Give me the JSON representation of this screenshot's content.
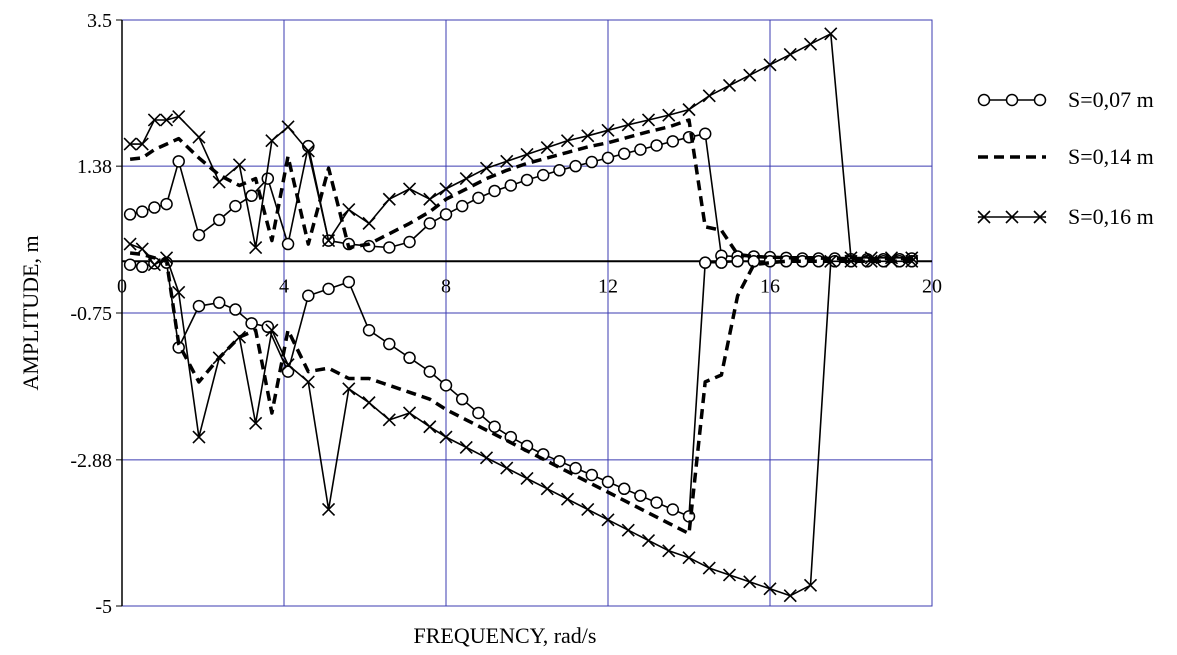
{
  "chart_data": {
    "type": "line",
    "title": "",
    "xlabel": "FREQUENCY, rad/s",
    "ylabel": "AMPLITUDE, m",
    "xlim": [
      0,
      20
    ],
    "ylim": [
      -5,
      3.5
    ],
    "x_ticks": [
      0,
      4,
      8,
      12,
      16,
      20
    ],
    "x_tick_labels": [
      "0",
      "4",
      "8",
      "12",
      "16",
      "20"
    ],
    "y_ticks": [
      3.5,
      1.38,
      -0.75,
      -2.88,
      -5
    ],
    "y_tick_labels": [
      "3.5",
      "1.38",
      "-0.75",
      "-2.88",
      "-5"
    ],
    "grid": true,
    "grid_color": "#3b3bb0",
    "legend_position": "right",
    "series": [
      {
        "name": "S=0,07 m",
        "style": "solid-circle",
        "upper": {
          "x": [
            0.2,
            0.5,
            0.8,
            1.1,
            1.4,
            1.9,
            2.4,
            2.8,
            3.2,
            3.6,
            4.1,
            4.6,
            5.1,
            5.6,
            6.1,
            6.6,
            7.1,
            7.6,
            8.0,
            8.4,
            8.8,
            9.2,
            9.6,
            10.0,
            10.4,
            10.8,
            11.2,
            11.6,
            12.0,
            12.4,
            12.8,
            13.2,
            13.6,
            14.0,
            14.4,
            14.8,
            15.2,
            15.6,
            16.0,
            16.4,
            16.8,
            17.2,
            17.6,
            18.0,
            18.4,
            18.8,
            19.2,
            19.5
          ],
          "y": [
            0.68,
            0.72,
            0.78,
            0.83,
            1.45,
            0.38,
            0.6,
            0.8,
            0.95,
            1.2,
            0.25,
            1.67,
            0.3,
            0.25,
            0.22,
            0.2,
            0.28,
            0.55,
            0.68,
            0.8,
            0.92,
            1.02,
            1.1,
            1.18,
            1.25,
            1.32,
            1.38,
            1.44,
            1.5,
            1.56,
            1.62,
            1.68,
            1.74,
            1.8,
            1.85,
            0.08,
            0.07,
            0.07,
            0.06,
            0.05,
            0.04,
            0.04,
            0.04,
            0.03,
            0.03,
            0.03,
            0.03,
            0.04
          ],
          "cross_x": 1.15
        },
        "lower": {
          "x": [
            0.2,
            0.5,
            0.8,
            1.1,
            1.4,
            1.9,
            2.4,
            2.8,
            3.2,
            3.6,
            4.1,
            4.6,
            5.1,
            5.6,
            6.1,
            6.6,
            7.1,
            7.6,
            8.0,
            8.4,
            8.8,
            9.2,
            9.6,
            10.0,
            10.4,
            10.8,
            11.2,
            11.6,
            12.0,
            12.4,
            12.8,
            13.2,
            13.6,
            14.0,
            14.4,
            14.8,
            15.2,
            15.6,
            16.0,
            16.4,
            16.8,
            17.2,
            17.6,
            18.0,
            18.4,
            18.8,
            19.2,
            19.5
          ],
          "y": [
            -0.05,
            -0.08,
            -0.03,
            -0.02,
            -1.25,
            -0.65,
            -0.6,
            -0.7,
            -0.9,
            -0.95,
            -1.6,
            -0.5,
            -0.4,
            -0.3,
            -1.0,
            -1.2,
            -1.4,
            -1.6,
            -1.8,
            -2.0,
            -2.2,
            -2.4,
            -2.55,
            -2.68,
            -2.8,
            -2.9,
            -3.0,
            -3.1,
            -3.2,
            -3.3,
            -3.4,
            -3.5,
            -3.6,
            -3.7,
            -0.02,
            -0.02,
            0.0,
            0.0,
            0.0,
            0.0,
            0.0,
            0.0,
            0.0,
            0.0,
            0.0,
            0.0,
            0.0,
            0.0
          ]
        }
      },
      {
        "name": "S=0,14 m",
        "style": "dashed",
        "upper": {
          "x": [
            0.2,
            0.5,
            0.8,
            1.1,
            1.4,
            1.9,
            2.4,
            2.9,
            3.3,
            3.7,
            4.1,
            4.6,
            5.1,
            5.6,
            6.1,
            6.6,
            7.1,
            7.6,
            8.0,
            8.5,
            9.0,
            9.5,
            10.0,
            10.5,
            11.0,
            11.5,
            12.0,
            12.5,
            13.0,
            13.5,
            14.0,
            14.4,
            14.8,
            15.2,
            15.6,
            16.0,
            16.4,
            17.0,
            17.6,
            18.0,
            18.5,
            19.0,
            19.5
          ],
          "y": [
            1.48,
            1.5,
            1.62,
            1.7,
            1.78,
            1.5,
            1.25,
            1.1,
            1.2,
            0.3,
            1.52,
            0.25,
            1.35,
            0.2,
            0.25,
            0.4,
            0.55,
            0.72,
            0.9,
            1.05,
            1.2,
            1.32,
            1.42,
            1.5,
            1.58,
            1.66,
            1.72,
            1.8,
            1.88,
            1.95,
            2.05,
            0.5,
            0.45,
            0.1,
            0.07,
            0.06,
            0.05,
            0.05,
            0.04,
            0.04,
            0.04,
            0.04,
            0.04
          ],
          "cross_x": 5.6
        },
        "lower": {
          "x": [
            0.2,
            0.5,
            0.8,
            1.1,
            1.4,
            1.9,
            2.4,
            2.9,
            3.3,
            3.7,
            4.1,
            4.6,
            5.1,
            5.6,
            6.1,
            6.6,
            7.1,
            7.6,
            8.0,
            8.5,
            9.0,
            9.5,
            10.0,
            10.5,
            11.0,
            11.5,
            12.0,
            12.5,
            13.0,
            13.5,
            14.0,
            14.4,
            14.8,
            15.2,
            15.6,
            16.0,
            16.4,
            17.0,
            17.6,
            18.0,
            18.5,
            19.0,
            19.5
          ],
          "y": [
            0.12,
            0.1,
            0.05,
            0.0,
            -1.2,
            -1.75,
            -1.4,
            -1.1,
            -1.0,
            -2.2,
            -1.0,
            -1.6,
            -1.55,
            -1.7,
            -1.7,
            -1.8,
            -1.9,
            -2.0,
            -2.15,
            -2.3,
            -2.45,
            -2.6,
            -2.75,
            -2.9,
            -3.05,
            -3.2,
            -3.35,
            -3.5,
            -3.65,
            -3.8,
            -3.95,
            -1.75,
            -1.65,
            -0.5,
            -0.05,
            -0.02,
            0.0,
            0.0,
            0.0,
            0.0,
            0.0,
            0.0,
            0.0
          ]
        }
      },
      {
        "name": "S=0,16 m",
        "style": "solid-cross",
        "upper": {
          "x": [
            0.2,
            0.5,
            0.8,
            1.1,
            1.4,
            1.9,
            2.4,
            2.9,
            3.3,
            3.7,
            4.1,
            4.6,
            5.1,
            5.6,
            6.1,
            6.6,
            7.1,
            7.6,
            8.0,
            8.5,
            9.0,
            9.5,
            10.0,
            10.5,
            11.0,
            11.5,
            12.0,
            12.5,
            13.0,
            13.5,
            14.0,
            14.5,
            15.0,
            15.5,
            16.0,
            16.5,
            17.0,
            17.5,
            18.0,
            18.5,
            19.0,
            19.5
          ],
          "y": [
            1.7,
            1.7,
            2.05,
            2.05,
            2.1,
            1.8,
            1.15,
            1.4,
            0.2,
            1.75,
            1.95,
            1.6,
            0.3,
            0.75,
            0.55,
            0.9,
            1.05,
            0.9,
            1.05,
            1.2,
            1.35,
            1.45,
            1.55,
            1.65,
            1.75,
            1.82,
            1.9,
            1.98,
            2.05,
            2.12,
            2.2,
            2.4,
            2.55,
            2.7,
            2.85,
            3.0,
            3.15,
            3.3,
            0.05,
            0.05,
            0.05,
            0.05
          ],
          "cross_x": 1.25
        },
        "lower": {
          "x": [
            0.2,
            0.5,
            0.8,
            1.1,
            1.4,
            1.9,
            2.4,
            2.9,
            3.3,
            3.7,
            4.1,
            4.6,
            5.1,
            5.6,
            6.1,
            6.6,
            7.1,
            7.6,
            8.0,
            8.5,
            9.0,
            9.5,
            10.0,
            10.5,
            11.0,
            11.5,
            12.0,
            12.5,
            13.0,
            13.5,
            14.0,
            14.5,
            15.0,
            15.5,
            16.0,
            16.5,
            17.0,
            17.5,
            18.0,
            18.5,
            19.0,
            19.5
          ],
          "y": [
            0.25,
            0.18,
            -0.05,
            0.05,
            -0.45,
            -2.55,
            -1.4,
            -1.1,
            -2.35,
            -1.0,
            -1.5,
            -1.75,
            -3.6,
            -1.85,
            -2.05,
            -2.3,
            -2.2,
            -2.4,
            -2.55,
            -2.7,
            -2.85,
            -3.0,
            -3.15,
            -3.3,
            -3.45,
            -3.6,
            -3.75,
            -3.9,
            -4.05,
            -4.2,
            -4.3,
            -4.45,
            -4.55,
            -4.65,
            -4.75,
            -4.85,
            -4.7,
            0.0,
            0.0,
            0.0,
            0.0,
            0.0
          ]
        }
      }
    ]
  }
}
